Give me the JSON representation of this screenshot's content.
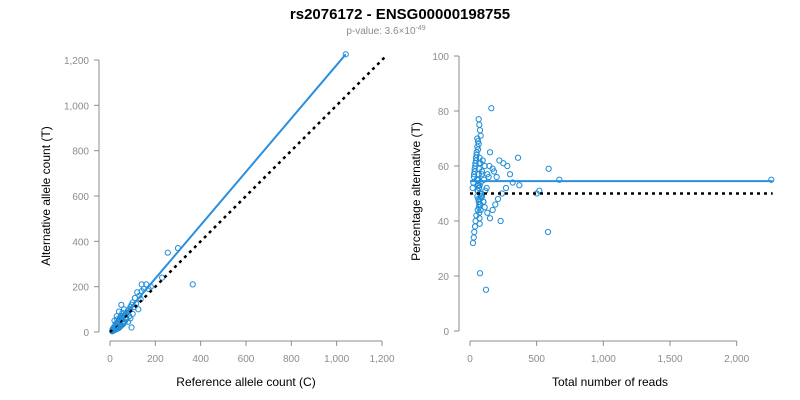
{
  "figure": {
    "title": "rs2076172 - ENSG00000198755",
    "subtitle_prefix": "p-value: 3.6×10",
    "subtitle_exponent": "-49"
  },
  "colors": {
    "point": "#1f8dd6",
    "fit": "#2b8fe0",
    "identity": "#000000",
    "axis": "#8c8c8c"
  },
  "chart_data": [
    {
      "type": "scatter",
      "xlabel": "Reference allele count (C)",
      "ylabel": "Alternative allele count (T)",
      "xlim": [
        0,
        1200
      ],
      "ylim": [
        0,
        1200
      ],
      "xticks": [
        0,
        200,
        400,
        600,
        800,
        1000,
        1200
      ],
      "xtick_labels": [
        "0",
        "200",
        "400",
        "600",
        "800",
        "1,000",
        "1,200"
      ],
      "yticks": [
        0,
        200,
        400,
        600,
        800,
        1000,
        1200
      ],
      "ytick_labels": [
        "0",
        "200",
        "400",
        "600",
        "800",
        "1,000",
        "1,200"
      ],
      "grid": false,
      "fit_line": {
        "x": [
          8,
          1040
        ],
        "y": [
          10,
          1225
        ]
      },
      "identity_line": {
        "x": [
          0,
          1215
        ],
        "y": [
          0,
          1215
        ]
      },
      "points": {
        "x": [
          1040,
          365,
          300,
          255,
          230,
          180,
          160,
          150,
          140,
          130,
          120,
          110,
          100,
          95,
          90,
          85,
          80,
          75,
          70,
          65,
          60,
          55,
          50,
          48,
          45,
          42,
          40,
          38,
          35,
          33,
          30,
          28,
          26,
          25,
          24,
          22,
          20,
          18,
          17,
          16,
          15,
          14,
          13,
          12,
          11,
          10,
          45,
          55,
          62,
          38,
          32,
          28,
          72,
          85,
          105,
          115,
          135,
          95,
          50,
          40,
          30,
          20,
          25,
          35,
          22,
          18,
          60,
          80,
          140,
          170,
          125,
          100,
          90,
          70,
          65,
          58,
          52,
          46,
          42,
          36,
          30,
          27,
          23,
          19,
          16,
          14,
          12,
          45,
          38,
          33,
          29,
          26,
          24,
          21,
          17,
          15,
          13,
          11,
          55,
          48
        ],
        "y": [
          1225,
          210,
          370,
          350,
          240,
          200,
          210,
          190,
          180,
          160,
          175,
          150,
          130,
          120,
          110,
          100,
          95,
          85,
          80,
          75,
          70,
          65,
          60,
          55,
          50,
          48,
          45,
          42,
          38,
          36,
          33,
          30,
          28,
          26,
          25,
          22,
          20,
          18,
          16,
          14,
          12,
          10,
          8,
          6,
          5,
          3,
          30,
          40,
          100,
          25,
          55,
          20,
          60,
          70,
          110,
          125,
          145,
          20,
          120,
          90,
          70,
          50,
          35,
          15,
          10,
          8,
          40,
          45,
          210,
          190,
          100,
          80,
          60,
          55,
          45,
          35,
          30,
          25,
          20,
          18,
          15,
          12,
          10,
          9,
          7,
          6,
          5,
          65,
          50,
          40,
          38,
          32,
          28,
          24,
          20,
          17,
          14,
          11,
          85,
          72
        ]
      }
    },
    {
      "type": "scatter",
      "xlabel": "Total number of reads",
      "ylabel": "Percentage alternative (T)",
      "xlim": [
        0,
        2250
      ],
      "ylim": [
        0,
        100
      ],
      "xticks": [
        0,
        500,
        1000,
        1500,
        2000
      ],
      "xtick_labels": [
        "0",
        "500",
        "1,000",
        "1,500",
        "2,000"
      ],
      "yticks": [
        0,
        20,
        40,
        60,
        80,
        100
      ],
      "ytick_labels": [
        "0",
        "20",
        "40",
        "60",
        "80",
        "100"
      ],
      "grid": false,
      "fit_line": {
        "x": [
          0,
          2270
        ],
        "y": [
          54.5,
          54.5
        ]
      },
      "identity_line": {
        "x": [
          0,
          2270
        ],
        "y": [
          50,
          50
        ]
      },
      "points": {
        "x": [
          2260,
          670,
          590,
          585,
          520,
          500,
          370,
          360,
          300,
          280,
          250,
          230,
          220,
          200,
          180,
          170,
          160,
          150,
          145,
          140,
          130,
          125,
          120,
          115,
          110,
          105,
          100,
          95,
          90,
          88,
          85,
          82,
          80,
          78,
          75,
          72,
          70,
          68,
          65,
          62,
          60,
          58,
          55,
          52,
          50,
          48,
          45,
          42,
          40,
          38,
          35,
          32,
          30,
          28,
          25,
          22,
          20,
          80,
          75,
          70,
          65,
          60,
          55,
          50,
          45,
          40,
          35,
          30,
          90,
          100,
          110,
          130,
          150,
          170,
          190,
          210,
          240,
          270,
          320,
          60,
          62,
          64,
          66,
          68,
          70,
          72,
          74,
          76,
          78,
          80,
          55,
          57,
          59,
          61,
          63,
          65,
          67,
          69,
          71,
          73
        ],
        "y": [
          55,
          55,
          59,
          36,
          51,
          50,
          53,
          63,
          57,
          60,
          61,
          40,
          62,
          56,
          58,
          59,
          81,
          65,
          60,
          56,
          57,
          52,
          15,
          51,
          60,
          55,
          47,
          62,
          58,
          57,
          50,
          49,
          54,
          61,
          21,
          53,
          46,
          52,
          68,
          48,
          66,
          44,
          70,
          55,
          64,
          42,
          62,
          40,
          60,
          38,
          58,
          36,
          56,
          34,
          54,
          32,
          52,
          71,
          73,
          75,
          77,
          69,
          67,
          65,
          63,
          61,
          59,
          57,
          49,
          47,
          45,
          43,
          41,
          44,
          46,
          48,
          50,
          52,
          54,
          51,
          53,
          55,
          57,
          59,
          61,
          63,
          50,
          48,
          46,
          44,
          49,
          51,
          53,
          55,
          57,
          47,
          45,
          43,
          41,
          39
        ]
      }
    }
  ]
}
